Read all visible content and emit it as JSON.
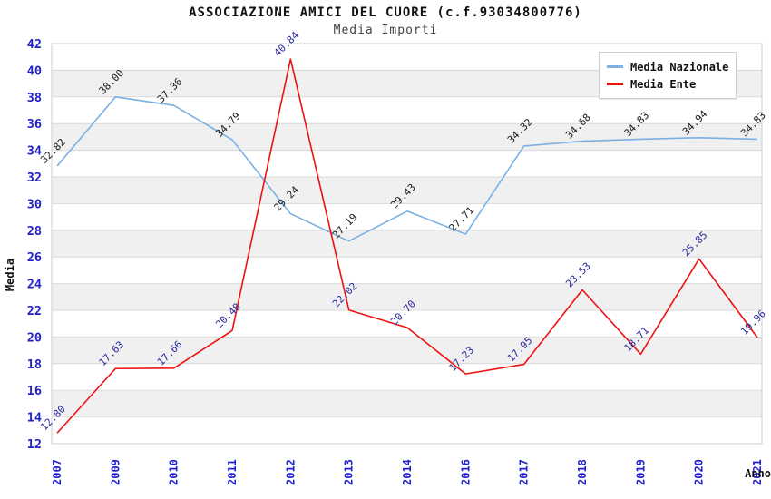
{
  "chart_data": {
    "type": "line",
    "title": "ASSOCIAZIONE AMICI DEL CUORE (c.f.93034800776)",
    "subtitle": "Media Importi",
    "xlabel": "Anno",
    "ylabel": "Media",
    "ylim": [
      12,
      42
    ],
    "ytick_step": 2,
    "grid": "horizontal-bands",
    "legend_position": "top-right-inside",
    "categories": [
      "2007",
      "2009",
      "2010",
      "2011",
      "2012",
      "2013",
      "2014",
      "2016",
      "2017",
      "2018",
      "2019",
      "2020",
      "2021"
    ],
    "series": [
      {
        "name": "Media Nazionale",
        "color": "#7cb0e2",
        "label_color": "#1a1a1a",
        "values": [
          32.82,
          38.0,
          37.36,
          34.79,
          29.24,
          27.19,
          29.43,
          27.71,
          34.32,
          34.68,
          34.83,
          34.94,
          34.83
        ]
      },
      {
        "name": "Media Ente",
        "color": "#ee1111",
        "label_color": "#2b2b9e",
        "values": [
          12.8,
          17.63,
          17.66,
          20.48,
          40.84,
          22.02,
          20.7,
          17.23,
          17.95,
          23.53,
          18.71,
          25.85,
          19.96
        ]
      }
    ],
    "colors": {
      "axis_tick_labels": "#2222cc",
      "band_fill": "#f0f0f0",
      "grid_line": "#d9d9d9",
      "plot_border": "#cccccc"
    }
  }
}
